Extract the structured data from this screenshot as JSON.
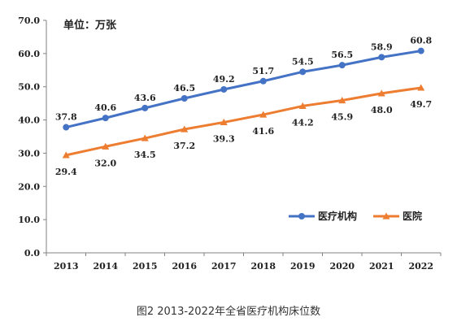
{
  "caption": "图2   2013-2022年全省医疗机构床位数",
  "chart_data": {
    "type": "line",
    "title": "",
    "unit_label": "单位：万张",
    "xlabel": "",
    "ylabel": "",
    "categories": [
      "2013",
      "2014",
      "2015",
      "2016",
      "2017",
      "2018",
      "2019",
      "2020",
      "2021",
      "2022"
    ],
    "ylim": [
      0,
      70
    ],
    "yticks": [
      "0.0",
      "10.0",
      "20.0",
      "30.0",
      "40.0",
      "50.0",
      "60.0",
      "70.0"
    ],
    "grid": false,
    "legend_position": "right",
    "series": [
      {
        "name": "医疗机构",
        "color": "#4472C4",
        "marker": "circle",
        "values": [
          37.8,
          40.6,
          43.6,
          46.5,
          49.2,
          51.7,
          54.5,
          56.5,
          58.9,
          60.8
        ],
        "labels": [
          "37.8",
          "40.6",
          "43.6",
          "46.5",
          "49.2",
          "51.7",
          "54.5",
          "56.5",
          "58.9",
          "60.8"
        ],
        "label_position": "above"
      },
      {
        "name": "医院",
        "color": "#ED7D31",
        "marker": "triangle",
        "values": [
          29.4,
          32.0,
          34.5,
          37.2,
          39.3,
          41.6,
          44.2,
          45.9,
          48.0,
          49.7
        ],
        "labels": [
          "29.4",
          "32.0",
          "34.5",
          "37.2",
          "39.3",
          "41.6",
          "44.2",
          "45.9",
          "48.0",
          "49.7"
        ],
        "label_position": "below"
      }
    ]
  }
}
